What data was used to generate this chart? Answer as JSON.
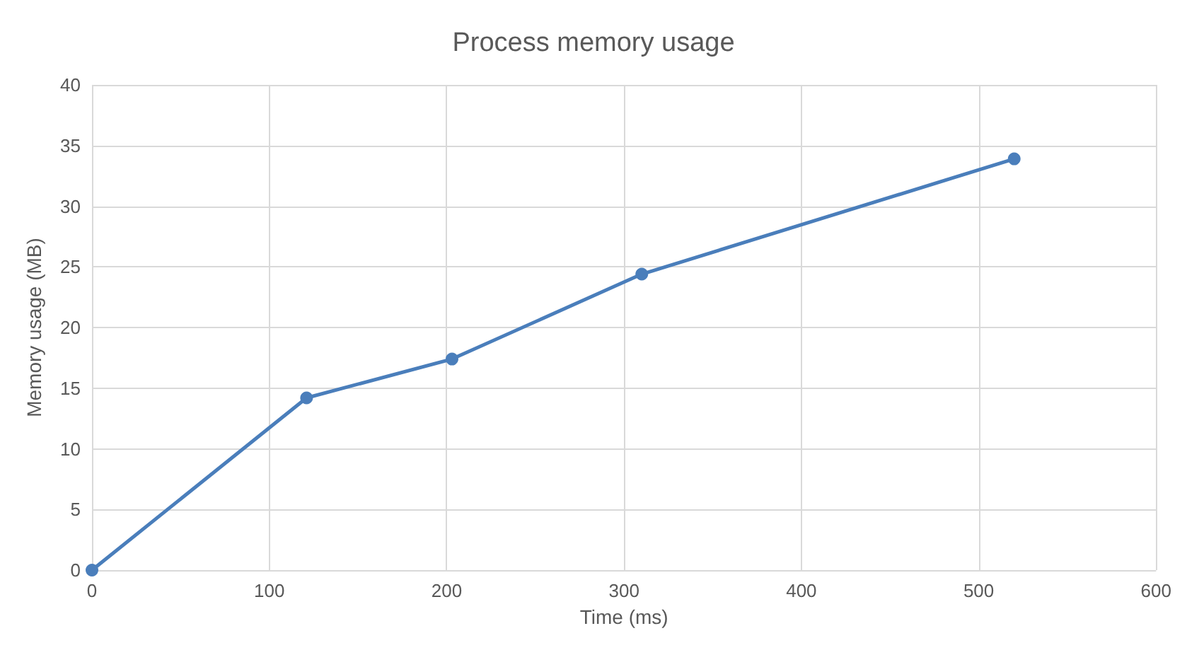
{
  "chart_data": {
    "type": "line",
    "title": "Process memory usage",
    "xlabel": "Time (ms)",
    "ylabel": "Memory usage (MB)",
    "x": [
      0,
      121,
      203,
      310,
      520
    ],
    "series": [
      {
        "color": "#4a7ebb",
        "values": [
          0,
          14.2,
          17.4,
          24.4,
          33.9
        ]
      }
    ],
    "xlim": [
      0,
      600
    ],
    "xticks": [
      0,
      100,
      200,
      300,
      400,
      500,
      600
    ],
    "ylim": [
      0,
      40
    ],
    "yticks": [
      0,
      5,
      10,
      15,
      20,
      25,
      30,
      35,
      40
    ],
    "grid": true,
    "marker": "circle",
    "line_style": "solid"
  }
}
